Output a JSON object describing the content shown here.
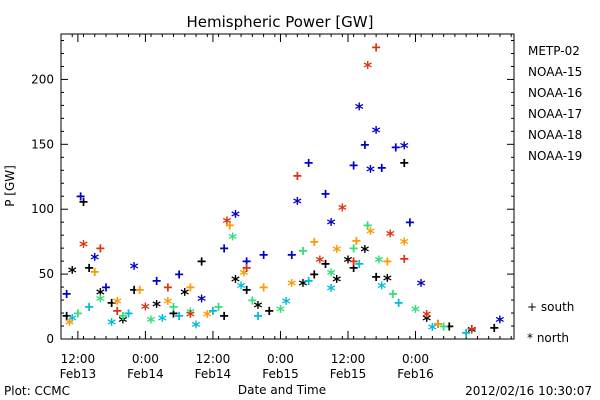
{
  "chart_data": {
    "type": "scatter",
    "title": "Hemispheric Power [GW]",
    "ylabel": "P [GW]",
    "xlabel": "Date and Time",
    "ylim": [
      0,
      235
    ],
    "yticks": [
      0,
      50,
      100,
      150,
      200
    ],
    "xlim": [
      "2012-02-13 09:00",
      "2012-02-16 17:30"
    ],
    "xticks": [
      {
        "value": "2012-02-13 12:00",
        "label": "12:00",
        "date": "Feb13"
      },
      {
        "value": "2012-02-14 00:00",
        "label": "0:00",
        "date": "Feb14"
      },
      {
        "value": "2012-02-14 12:00",
        "label": "12:00",
        "date": "Feb14"
      },
      {
        "value": "2012-02-15 00:00",
        "label": "0:00",
        "date": "Feb15"
      },
      {
        "value": "2012-02-15 12:00",
        "label": "12:00",
        "date": "Feb15"
      },
      {
        "value": "2012-02-16 00:00",
        "label": "0:00",
        "date": "Feb16"
      }
    ],
    "markers": [
      {
        "symbol": "+",
        "label": "south"
      },
      {
        "symbol": "*",
        "label": "north"
      }
    ],
    "series": [
      {
        "name": "METP-02",
        "color": "#000000",
        "points": [
          [
            "2012-02-13 10:00",
            18,
            "+"
          ],
          [
            "2012-02-13 11:00",
            52,
            "*"
          ],
          [
            "2012-02-13 13:00",
            106,
            "+"
          ],
          [
            "2012-02-13 14:00",
            55,
            "+"
          ],
          [
            "2012-02-13 16:00",
            35,
            "*"
          ],
          [
            "2012-02-13 18:00",
            28,
            "+"
          ],
          [
            "2012-02-13 20:00",
            14,
            "*"
          ],
          [
            "2012-02-13 22:00",
            38,
            "+"
          ],
          [
            "2012-02-14 02:00",
            26,
            "*"
          ],
          [
            "2012-02-14 05:00",
            20,
            "+"
          ],
          [
            "2012-02-14 07:00",
            35,
            "*"
          ],
          [
            "2012-02-14 10:00",
            60,
            "+"
          ],
          [
            "2012-02-14 14:00",
            18,
            "+"
          ],
          [
            "2012-02-14 16:00",
            45,
            "*"
          ],
          [
            "2012-02-14 18:00",
            38,
            "+"
          ],
          [
            "2012-02-14 20:00",
            25,
            "*"
          ],
          [
            "2012-02-14 22:00",
            22,
            "+"
          ],
          [
            "2012-02-15 04:00",
            42,
            "*"
          ],
          [
            "2012-02-15 06:00",
            50,
            "+"
          ],
          [
            "2012-02-15 08:00",
            58,
            "+"
          ],
          [
            "2012-02-15 10:00",
            45,
            "*"
          ],
          [
            "2012-02-15 12:00",
            60,
            "*"
          ],
          [
            "2012-02-15 13:00",
            55,
            "+"
          ],
          [
            "2012-02-15 15:00",
            68,
            "*"
          ],
          [
            "2012-02-15 17:00",
            48,
            "+"
          ],
          [
            "2012-02-15 19:00",
            46,
            "*"
          ],
          [
            "2012-02-15 22:00",
            136,
            "+"
          ],
          [
            "2012-02-16 02:00",
            15,
            "*"
          ],
          [
            "2012-02-16 06:00",
            10,
            "+"
          ],
          [
            "2012-02-16 10:00",
            6,
            "*"
          ],
          [
            "2012-02-16 14:00",
            9,
            "+"
          ]
        ]
      },
      {
        "name": "NOAA-15",
        "color": "#0000cc",
        "points": [
          [
            "2012-02-13 10:00",
            35,
            "+"
          ],
          [
            "2012-02-13 12:30",
            110,
            "+"
          ],
          [
            "2012-02-13 15:00",
            62,
            "*"
          ],
          [
            "2012-02-13 17:00",
            40,
            "+"
          ],
          [
            "2012-02-13 22:00",
            55,
            "*"
          ],
          [
            "2012-02-14 02:00",
            45,
            "+"
          ],
          [
            "2012-02-14 06:00",
            50,
            "+"
          ],
          [
            "2012-02-14 10:00",
            30,
            "*"
          ],
          [
            "2012-02-14 14:00",
            70,
            "+"
          ],
          [
            "2012-02-14 16:00",
            95,
            "*"
          ],
          [
            "2012-02-14 18:00",
            60,
            "+"
          ],
          [
            "2012-02-14 21:00",
            65,
            "+"
          ],
          [
            "2012-02-15 02:00",
            65,
            "+"
          ],
          [
            "2012-02-15 03:00",
            105,
            "*"
          ],
          [
            "2012-02-15 05:00",
            136,
            "+"
          ],
          [
            "2012-02-15 08:00",
            112,
            "+"
          ],
          [
            "2012-02-15 09:00",
            89,
            "*"
          ],
          [
            "2012-02-15 13:00",
            134,
            "+"
          ],
          [
            "2012-02-15 14:00",
            178,
            "*"
          ],
          [
            "2012-02-15 15:00",
            150,
            "+"
          ],
          [
            "2012-02-15 16:00",
            130,
            "*"
          ],
          [
            "2012-02-15 17:00",
            160,
            "*"
          ],
          [
            "2012-02-15 18:00",
            132,
            "+"
          ],
          [
            "2012-02-15 20:30",
            148,
            "+"
          ],
          [
            "2012-02-15 22:00",
            148,
            "*"
          ],
          [
            "2012-02-15 23:00",
            90,
            "+"
          ],
          [
            "2012-02-16 01:00",
            42,
            "*"
          ],
          [
            "2012-02-16 04:00",
            12,
            "+"
          ],
          [
            "2012-02-16 15:00",
            14,
            "*"
          ]
        ]
      },
      {
        "name": "NOAA-16",
        "color": "#00bbdd",
        "points": [
          [
            "2012-02-13 11:00",
            15,
            "*"
          ],
          [
            "2012-02-13 14:00",
            25,
            "+"
          ],
          [
            "2012-02-13 18:00",
            12,
            "*"
          ],
          [
            "2012-02-13 21:00",
            20,
            "+"
          ],
          [
            "2012-02-14 03:00",
            15,
            "*"
          ],
          [
            "2012-02-14 06:00",
            18,
            "+"
          ],
          [
            "2012-02-14 09:00",
            10,
            "*"
          ],
          [
            "2012-02-14 12:00",
            22,
            "+"
          ],
          [
            "2012-02-14 17:00",
            40,
            "*"
          ],
          [
            "2012-02-14 20:00",
            18,
            "+"
          ],
          [
            "2012-02-15 01:00",
            28,
            "*"
          ],
          [
            "2012-02-15 05:00",
            45,
            "+"
          ],
          [
            "2012-02-15 09:00",
            38,
            "*"
          ],
          [
            "2012-02-15 14:00",
            58,
            "+"
          ],
          [
            "2012-02-15 18:00",
            40,
            "*"
          ],
          [
            "2012-02-15 21:00",
            28,
            "+"
          ],
          [
            "2012-02-16 03:00",
            8,
            "*"
          ],
          [
            "2012-02-16 09:00",
            5,
            "+"
          ]
        ]
      },
      {
        "name": "NOAA-17",
        "color": "#33dd77",
        "points": [
          [
            "2012-02-13 12:00",
            20,
            "+"
          ],
          [
            "2012-02-13 16:00",
            30,
            "*"
          ],
          [
            "2012-02-13 20:00",
            18,
            "+"
          ],
          [
            "2012-02-14 01:00",
            14,
            "*"
          ],
          [
            "2012-02-14 05:00",
            25,
            "+"
          ],
          [
            "2012-02-14 08:00",
            20,
            "*"
          ],
          [
            "2012-02-14 13:00",
            25,
            "+"
          ],
          [
            "2012-02-14 15:30",
            78,
            "*"
          ],
          [
            "2012-02-14 19:00",
            30,
            "+"
          ],
          [
            "2012-02-15 00:00",
            22,
            "*"
          ],
          [
            "2012-02-15 04:00",
            68,
            "+"
          ],
          [
            "2012-02-15 09:00",
            50,
            "*"
          ],
          [
            "2012-02-15 13:00",
            70,
            "+"
          ],
          [
            "2012-02-15 15:30",
            88,
            "+"
          ],
          [
            "2012-02-15 17:30",
            60,
            "*"
          ],
          [
            "2012-02-15 20:00",
            35,
            "+"
          ],
          [
            "2012-02-16 00:00",
            22,
            "*"
          ],
          [
            "2012-02-16 05:00",
            10,
            "+"
          ]
        ]
      },
      {
        "name": "NOAA-18",
        "color": "#ff9900",
        "points": [
          [
            "2012-02-13 10:30",
            12,
            "*"
          ],
          [
            "2012-02-13 15:00",
            52,
            "+"
          ],
          [
            "2012-02-13 19:00",
            28,
            "*"
          ],
          [
            "2012-02-13 23:00",
            38,
            "+"
          ],
          [
            "2012-02-14 04:00",
            28,
            "*"
          ],
          [
            "2012-02-14 08:00",
            40,
            "+"
          ],
          [
            "2012-02-14 11:00",
            18,
            "*"
          ],
          [
            "2012-02-14 15:00",
            88,
            "+"
          ],
          [
            "2012-02-14 17:30",
            50,
            "*"
          ],
          [
            "2012-02-14 21:00",
            40,
            "+"
          ],
          [
            "2012-02-15 02:00",
            42,
            "*"
          ],
          [
            "2012-02-15 06:00",
            75,
            "+"
          ],
          [
            "2012-02-15 10:00",
            68,
            "*"
          ],
          [
            "2012-02-15 13:30",
            76,
            "+"
          ],
          [
            "2012-02-15 16:00",
            82,
            "*"
          ],
          [
            "2012-02-15 19:00",
            60,
            "+"
          ],
          [
            "2012-02-15 22:00",
            74,
            "*"
          ],
          [
            "2012-02-16 04:00",
            12,
            "+"
          ]
        ]
      },
      {
        "name": "NOAA-19",
        "color": "#dd3311",
        "points": [
          [
            "2012-02-13 13:00",
            72,
            "*"
          ],
          [
            "2012-02-13 16:00",
            70,
            "+"
          ],
          [
            "2012-02-13 19:00",
            22,
            "+"
          ],
          [
            "2012-02-14 00:00",
            24,
            "*"
          ],
          [
            "2012-02-14 04:00",
            40,
            "+"
          ],
          [
            "2012-02-14 08:00",
            18,
            "*"
          ],
          [
            "2012-02-14 14:30",
            90,
            "*"
          ],
          [
            "2012-02-14 18:00",
            55,
            "+"
          ],
          [
            "2012-02-15 03:00",
            126,
            "+"
          ],
          [
            "2012-02-15 07:00",
            60,
            "*"
          ],
          [
            "2012-02-15 11:00",
            100,
            "*"
          ],
          [
            "2012-02-15 13:00",
            60,
            "+"
          ],
          [
            "2012-02-15 15:30",
            210,
            "*"
          ],
          [
            "2012-02-15 17:00",
            225,
            "+"
          ],
          [
            "2012-02-15 19:30",
            80,
            "*"
          ],
          [
            "2012-02-15 22:00",
            62,
            "+"
          ],
          [
            "2012-02-16 02:00",
            18,
            "*"
          ],
          [
            "2012-02-16 10:00",
            8,
            "+"
          ]
        ]
      }
    ]
  },
  "footer": {
    "left": "Plot: CCMC",
    "right": "2012/02/16 10:30:07"
  }
}
